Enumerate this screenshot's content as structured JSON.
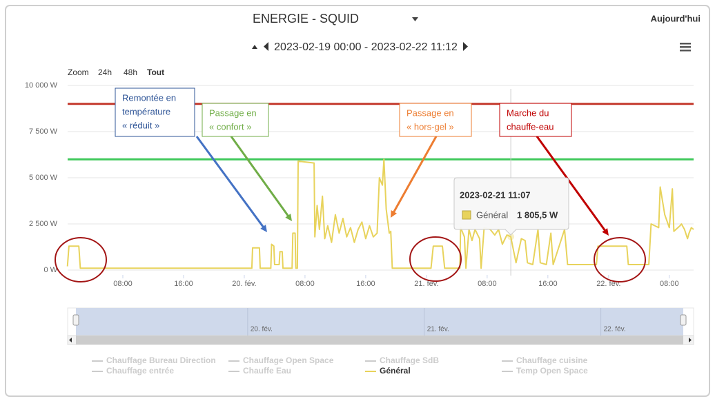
{
  "chart_data": {
    "type": "line",
    "title": "ENERGIE - SQUID",
    "subtitle": "2023-02-19 00:00 - 2023-02-22 11:12",
    "today_button": "Aujourd'hui",
    "zoom": {
      "label": "Zoom",
      "buttons": [
        "24h",
        "48h",
        "Tout"
      ],
      "active": 2
    },
    "xlim": [
      "2023-02-19 00:00",
      "2023-02-22 11:12"
    ],
    "xticks": [
      {
        "value": "2023-02-19 08:00",
        "label": "08:00"
      },
      {
        "value": "2023-02-19 16:00",
        "label": "16:00"
      },
      {
        "value": "2023-02-20 00:00",
        "label": "20. fév."
      },
      {
        "value": "2023-02-20 08:00",
        "label": "08:00"
      },
      {
        "value": "2023-02-20 16:00",
        "label": "16:00"
      },
      {
        "value": "2023-02-21 00:00",
        "label": "21. fév."
      },
      {
        "value": "2023-02-21 08:00",
        "label": "08:00"
      },
      {
        "value": "2023-02-21 16:00",
        "label": "16:00"
      },
      {
        "value": "2023-02-22 00:00",
        "label": "22. fév."
      },
      {
        "value": "2023-02-22 08:00",
        "label": "08:00"
      }
    ],
    "ylim": [
      0,
      10000
    ],
    "yticks": [
      {
        "value": 0,
        "label": "0 W"
      },
      {
        "value": 2500,
        "label": "2 500 W"
      },
      {
        "value": 5000,
        "label": "5 000 W"
      },
      {
        "value": 7500,
        "label": "7 500 W"
      },
      {
        "value": 10000,
        "label": "10 000 W"
      }
    ],
    "grid": true,
    "plot_lines": [
      {
        "value": 9000,
        "color": "#c4392c"
      },
      {
        "value": 6000,
        "color": "#3ec85a"
      }
    ],
    "x": [
      "2023-02-19 00:42",
      "2023-02-19 00:54",
      "2023-02-19 02:12",
      "2023-02-19 02:24",
      "2023-02-20 01:00",
      "2023-02-20 01:06",
      "2023-02-20 02:00",
      "2023-02-20 02:06",
      "2023-02-20 03:30",
      "2023-02-20 03:36",
      "2023-02-20 03:54",
      "2023-02-20 04:00",
      "2023-02-20 04:36",
      "2023-02-20 04:42",
      "2023-02-20 05:00",
      "2023-02-20 05:06",
      "2023-02-20 06:18",
      "2023-02-20 06:24",
      "2023-02-20 06:42",
      "2023-02-20 06:48",
      "2023-02-20 07:00",
      "2023-02-20 07:06",
      "2023-02-20 09:12",
      "2023-02-20 09:18",
      "2023-02-20 09:36",
      "2023-02-20 09:54",
      "2023-02-20 10:18",
      "2023-02-20 10:36",
      "2023-02-20 11:00",
      "2023-02-20 11:30",
      "2023-02-20 12:00",
      "2023-02-20 12:30",
      "2023-02-20 13:00",
      "2023-02-20 13:30",
      "2023-02-20 14:00",
      "2023-02-20 14:30",
      "2023-02-20 15:00",
      "2023-02-20 15:30",
      "2023-02-20 16:00",
      "2023-02-20 16:30",
      "2023-02-20 17:00",
      "2023-02-20 17:30",
      "2023-02-20 17:48",
      "2023-02-20 18:12",
      "2023-02-20 18:24",
      "2023-02-20 18:42",
      "2023-02-20 19:06",
      "2023-02-20 19:18",
      "2023-02-20 19:30",
      "2023-02-21 00:36",
      "2023-02-21 00:54",
      "2023-02-21 02:06",
      "2023-02-21 02:24",
      "2023-02-21 04:24",
      "2023-02-21 04:30",
      "2023-02-21 05:00",
      "2023-02-21 05:12",
      "2023-02-21 05:36",
      "2023-02-21 06:00",
      "2023-02-21 06:24",
      "2023-02-21 07:00",
      "2023-02-21 07:12",
      "2023-02-21 07:36",
      "2023-02-21 08:24",
      "2023-02-21 09:00",
      "2023-02-21 09:30",
      "2023-02-21 10:00",
      "2023-02-21 10:36",
      "2023-02-21 11:07",
      "2023-02-21 11:24",
      "2023-02-21 11:48",
      "2023-02-21 12:30",
      "2023-02-21 13:00",
      "2023-02-21 13:18",
      "2023-02-21 14:00",
      "2023-02-21 14:42",
      "2023-02-21 15:00",
      "2023-02-21 15:48",
      "2023-02-21 16:24",
      "2023-02-21 16:42",
      "2023-02-21 18:12",
      "2023-02-21 18:36",
      "2023-02-21 22:24",
      "2023-02-21 22:36",
      "2023-02-22 02:24",
      "2023-02-22 02:36",
      "2023-02-22 05:18",
      "2023-02-22 05:36",
      "2023-02-22 06:36",
      "2023-02-22 06:48",
      "2023-02-22 07:24",
      "2023-02-22 08:00",
      "2023-02-22 08:24",
      "2023-02-22 08:36",
      "2023-02-22 09:24",
      "2023-02-22 09:36",
      "2023-02-22 10:00",
      "2023-02-22 10:24",
      "2023-02-22 10:36",
      "2023-02-22 10:54",
      "2023-02-22 11:12"
    ],
    "series": [
      {
        "name": "Chauffage Bureau Direction",
        "visible": false
      },
      {
        "name": "Chauffage Open Space",
        "visible": false
      },
      {
        "name": "Chauffage SdB",
        "visible": false
      },
      {
        "name": "Chauffage cuisine",
        "visible": false
      },
      {
        "name": "Chauffage entrée",
        "visible": false
      },
      {
        "name": "Chauffe Eau",
        "visible": false
      },
      {
        "name": "Général",
        "visible": true,
        "color": "#e8d35c",
        "values": [
          200,
          1300,
          1300,
          100,
          100,
          1200,
          1200,
          100,
          100,
          1400,
          1300,
          300,
          300,
          1000,
          1000,
          100,
          100,
          2000,
          2000,
          100,
          100,
          5900,
          5800,
          1800,
          3500,
          2200,
          4000,
          1700,
          2400,
          1500,
          3000,
          2000,
          2800,
          1800,
          2300,
          1500,
          2200,
          2600,
          1700,
          2400,
          1800,
          2000,
          5000,
          4600,
          6000,
          3300,
          2000,
          2100,
          100,
          100,
          1300,
          1300,
          100,
          100,
          2300,
          1800,
          100,
          2200,
          1600,
          2200,
          1700,
          100,
          2300,
          2200,
          1900,
          2200,
          1400,
          1900,
          1805.5,
          1200,
          400,
          1700,
          1600,
          400,
          300,
          2200,
          400,
          300,
          2000,
          300,
          2200,
          300,
          300,
          1300,
          1300,
          300,
          300,
          2500,
          2300,
          4500,
          3000,
          2300,
          4400,
          2100,
          2400,
          2500,
          2200,
          1700,
          2000,
          2300,
          2200
        ]
      },
      {
        "name": "Temp Open Space",
        "visible": false
      }
    ],
    "tooltip": {
      "x": "2023-02-21 11:07",
      "value": 1805.5,
      "value_label": "1 805,5 W"
    },
    "annotations": [
      {
        "lines": [
          "Remontée en",
          "température",
          "« réduit »"
        ],
        "color": "#2f5597"
      },
      {
        "lines": [
          "Passage en",
          "« confort »"
        ],
        "color": "#70ad47"
      },
      {
        "lines": [
          "Passage en",
          "« hors-gel »"
        ],
        "color": "#ed7d31"
      },
      {
        "lines": [
          "Marche du",
          "chauffe-eau"
        ],
        "color": "#c00000"
      }
    ]
  }
}
